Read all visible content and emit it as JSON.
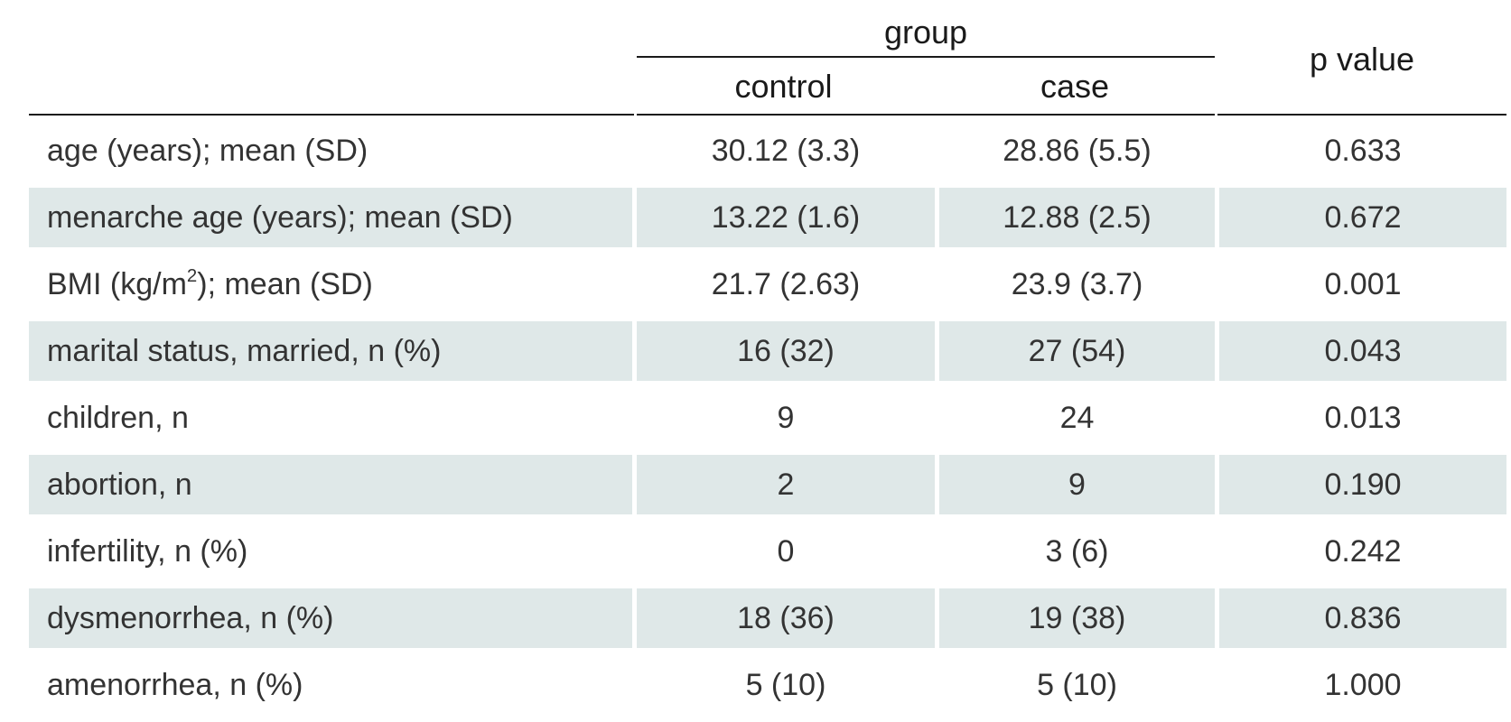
{
  "header": {
    "group": "group",
    "control": "control",
    "case": "case",
    "p_value": "p value"
  },
  "rows": [
    {
      "label": "age (years); mean (SD)",
      "control": "30.12 (3.3)",
      "case": "28.86 (5.5)",
      "p": "0.633"
    },
    {
      "label": "menarche age (years); mean (SD)",
      "control": "13.22 (1.6)",
      "case": "12.88 (2.5)",
      "p": "0.672"
    },
    {
      "label_pre": "BMI (kg/m",
      "label_sup": "2",
      "label_post": "); mean (SD)",
      "control": "21.7 (2.63)",
      "case": "23.9 (3.7)",
      "p": "0.001"
    },
    {
      "label": "marital status, married, n (%)",
      "control": "16 (32)",
      "case": "27 (54)",
      "p": "0.043"
    },
    {
      "label": "children, n",
      "control": "9",
      "case": "24",
      "p": "0.013"
    },
    {
      "label": "abortion, n",
      "control": "2",
      "case": "9",
      "p": "0.190"
    },
    {
      "label": "infertility, n (%)",
      "control": "0",
      "case": "3 (6)",
      "p": "0.242"
    },
    {
      "label": "dysmenorrhea, n (%)",
      "control": "18 (36)",
      "case": "19 (38)",
      "p": "0.836"
    },
    {
      "label": "amenorrhea, n (%)",
      "control": "5 (10)",
      "case": "5 (10)",
      "p": "1.000"
    }
  ]
}
